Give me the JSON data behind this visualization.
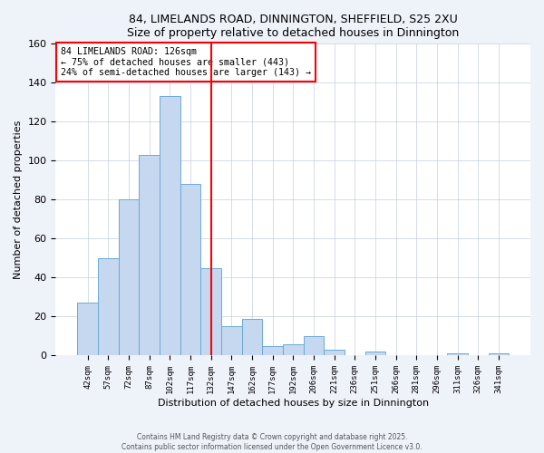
{
  "title": "84, LIMELANDS ROAD, DINNINGTON, SHEFFIELD, S25 2XU",
  "subtitle": "Size of property relative to detached houses in Dinnington",
  "xlabel": "Distribution of detached houses by size in Dinnington",
  "ylabel": "Number of detached properties",
  "bar_labels": [
    "42sqm",
    "57sqm",
    "72sqm",
    "87sqm",
    "102sqm",
    "117sqm",
    "132sqm",
    "147sqm",
    "162sqm",
    "177sqm",
    "192sqm",
    "206sqm",
    "221sqm",
    "236sqm",
    "251sqm",
    "266sqm",
    "281sqm",
    "296sqm",
    "311sqm",
    "326sqm",
    "341sqm"
  ],
  "bar_values": [
    27,
    50,
    80,
    103,
    133,
    88,
    45,
    15,
    19,
    5,
    6,
    10,
    3,
    0,
    2,
    0,
    0,
    0,
    1,
    0,
    1
  ],
  "bar_color": "#c5d8f0",
  "bar_edgecolor": "#6aaad4",
  "vline_x": 6.0,
  "vline_color": "red",
  "annotation_title": "84 LIMELANDS ROAD: 126sqm",
  "annotation_line1": "← 75% of detached houses are smaller (443)",
  "annotation_line2": "24% of semi-detached houses are larger (143) →",
  "annotation_box_edgecolor": "red",
  "ylim": [
    0,
    160
  ],
  "yticks": [
    0,
    20,
    40,
    60,
    80,
    100,
    120,
    140,
    160
  ],
  "footer1": "Contains HM Land Registry data © Crown copyright and database right 2025.",
  "footer2": "Contains public sector information licensed under the Open Government Licence v3.0.",
  "bg_color": "#eef2f9",
  "plot_bg_color": "#ffffff"
}
